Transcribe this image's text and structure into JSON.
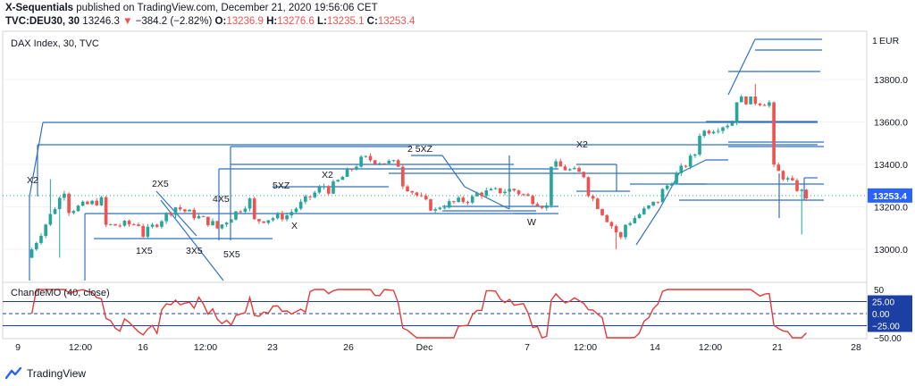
{
  "header": {
    "author": "X-Sequentials",
    "published_text": "published on TradingView.com, December 21, 2020 19:56:06 CET",
    "symbol": "TVC:DEU30, 30",
    "last_price": "13246.3",
    "change": "−384.2 (−2.82%)",
    "o_label": "O:",
    "o_value": "13236.9",
    "h_label": "H:",
    "h_value": "13276.6",
    "l_label": "L:",
    "l_value": "13235.1",
    "c_label": "C:",
    "c_value": "13253.4"
  },
  "footer": {
    "brand": "TradingView"
  },
  "colors": {
    "up": "#26a69a",
    "down": "#ef5350",
    "drawing": "#2f72c4",
    "cmo": "#e53935",
    "price_tag": "#2962ff",
    "axis_tag": "#1b3fa3"
  },
  "chart_data": {
    "type": "candlestick",
    "title": "DAX Index, 30, TVC",
    "currency": "EUR",
    "y_ticks": [
      13000.0,
      13200.0,
      13400.0,
      13600.0,
      13800.0
    ],
    "ylim": [
      12850,
      14050
    ],
    "last_price_tag": "13253.4",
    "x_ticks": [
      "9",
      "12:00",
      "16",
      "12:00",
      "23",
      "26",
      "Dec",
      "7",
      "12:00",
      "14",
      "12:00",
      "21",
      "28"
    ],
    "segments": [
      {
        "start": 12960,
        "end": 13280,
        "low": 12960,
        "high": 13330
      },
      {
        "start": 13180,
        "end": 13230
      },
      {
        "start": 13110,
        "end": 13120
      },
      {
        "start": 13050,
        "end": 13200
      },
      {
        "start": 13200,
        "end": 13120
      },
      {
        "start": 13080,
        "end": 13230
      },
      {
        "start": 13130,
        "end": 13160
      },
      {
        "start": 13160,
        "end": 13300
      },
      {
        "start": 13260,
        "end": 13420
      },
      {
        "start": 13430,
        "end": 13400
      },
      {
        "start": 13330,
        "end": 13180
      },
      {
        "start": 13200,
        "end": 13240
      },
      {
        "start": 13260,
        "end": 13280
      },
      {
        "start": 13290,
        "end": 13200
      },
      {
        "start": 13410,
        "end": 13350
      },
      {
        "start": 13300,
        "end": 13050,
        "low": 13000
      },
      {
        "start": 13100,
        "end": 13230
      },
      {
        "start": 13250,
        "end": 13450
      },
      {
        "start": 13540,
        "end": 13600
      },
      {
        "start": 13710,
        "end": 13690,
        "high": 13780
      },
      {
        "start": 13400,
        "end": 13250,
        "low": 13070
      }
    ],
    "indicator": {
      "name": "ChandeMO (40, close)",
      "levels": [
        25,
        0,
        -25
      ],
      "level_labels": [
        "25.00",
        "0.00",
        "−25.00"
      ],
      "ticks": [
        50,
        -50
      ],
      "tick_labels": [
        "50",
        "−50.00"
      ],
      "ylim": [
        -55,
        55
      ],
      "last_value": -40
    },
    "annotations": [
      "X2",
      "2X5",
      "1X5",
      "3X5",
      "4X5",
      "5X5",
      "5XZ",
      "X",
      "X2",
      "2 5XZ",
      "X2",
      "W"
    ]
  }
}
